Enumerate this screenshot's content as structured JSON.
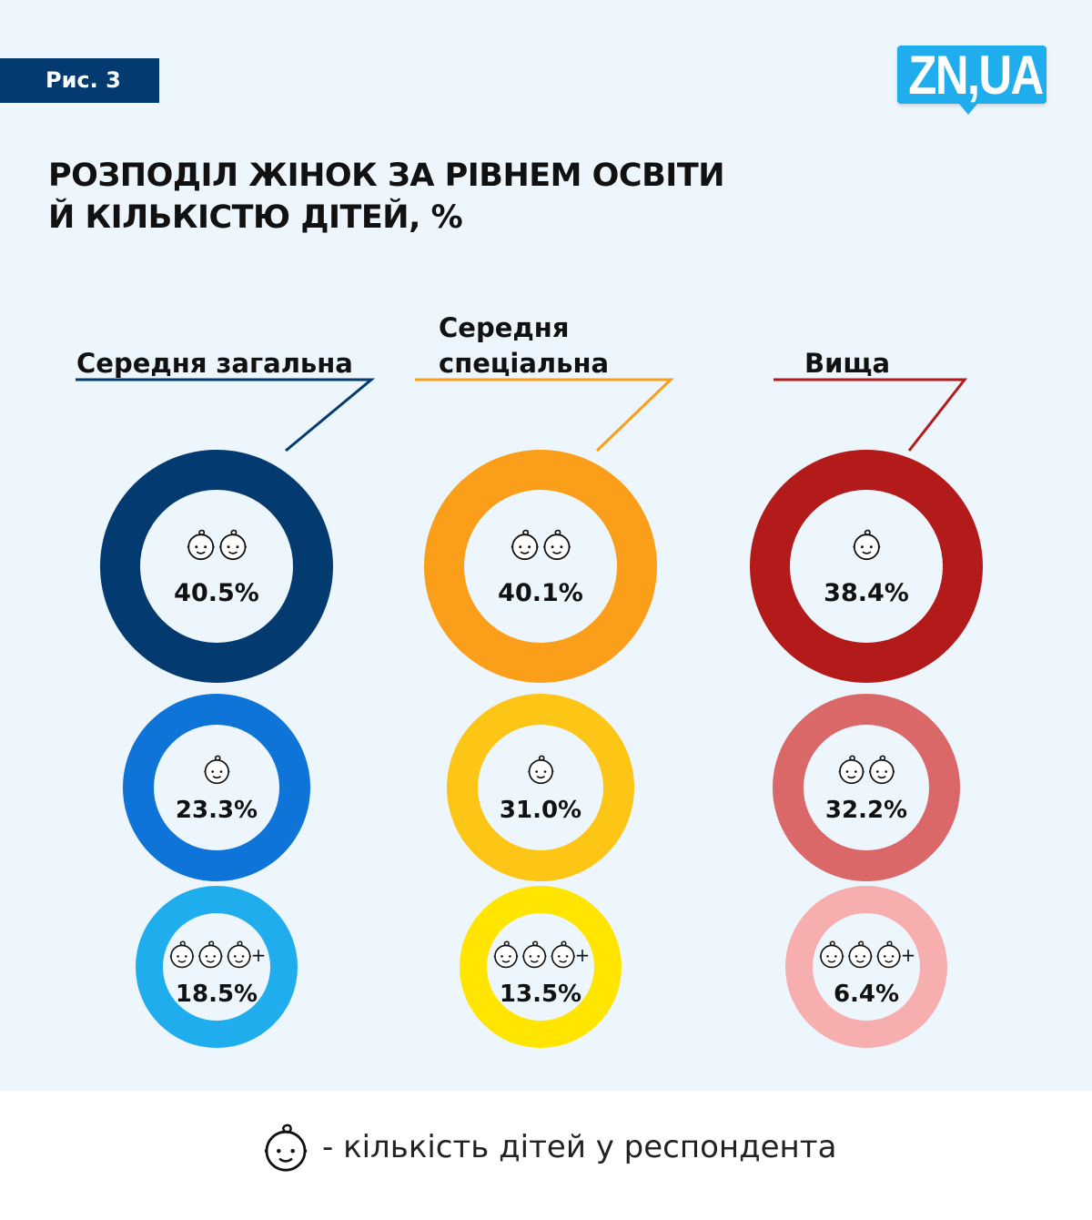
{
  "figure_label": "Рис. 3",
  "logo": "ZN,UA",
  "title_line1": "РОЗПОДІЛ ЖІНОК ЗА РІВНЕМ ОСВІТИ",
  "title_line2": "Й КІЛЬКІСТЮ ДІТЕЙ, %",
  "legend": {
    "icon": "baby-face-icon",
    "text": "- кількість дітей у респондента"
  },
  "chart_data": {
    "type": "donut",
    "title": "РОЗПОДІЛ ЖІНОК ЗА РІВНЕМ ОСВІТИ Й КІЛЬКІСТЮ ДІТЕЙ, %",
    "groups": [
      {
        "name_lines": [
          "Середня загальна"
        ],
        "accent": "#033a70",
        "items": [
          {
            "children": 2,
            "plus": false,
            "label": "40.5%",
            "value": 40.5,
            "color": "#033a70"
          },
          {
            "children": 1,
            "plus": false,
            "label": "23.3%",
            "value": 23.3,
            "color": "#0e74d8"
          },
          {
            "children": 3,
            "plus": true,
            "label": "18.5%",
            "value": 18.5,
            "color": "#1fadee"
          }
        ]
      },
      {
        "name_lines": [
          "Середня",
          "спеціальна"
        ],
        "accent": "#fb9e1a",
        "items": [
          {
            "children": 2,
            "plus": false,
            "label": "40.1%",
            "value": 40.1,
            "color": "#fb9e1a"
          },
          {
            "children": 1,
            "plus": false,
            "label": "31.0%",
            "value": 31.0,
            "color": "#fdc516"
          },
          {
            "children": 3,
            "plus": true,
            "label": "13.5%",
            "value": 13.5,
            "color": "#ffe500"
          }
        ]
      },
      {
        "name_lines": [
          "Вища"
        ],
        "accent": "#b31b1b",
        "items": [
          {
            "children": 1,
            "plus": false,
            "label": "38.4%",
            "value": 38.4,
            "color": "#b31b1b"
          },
          {
            "children": 2,
            "plus": false,
            "label": "32.2%",
            "value": 32.2,
            "color": "#da6868"
          },
          {
            "children": 3,
            "plus": true,
            "label": "6.4%",
            "value": 6.4,
            "color": "#f7aeae"
          }
        ]
      }
    ]
  }
}
